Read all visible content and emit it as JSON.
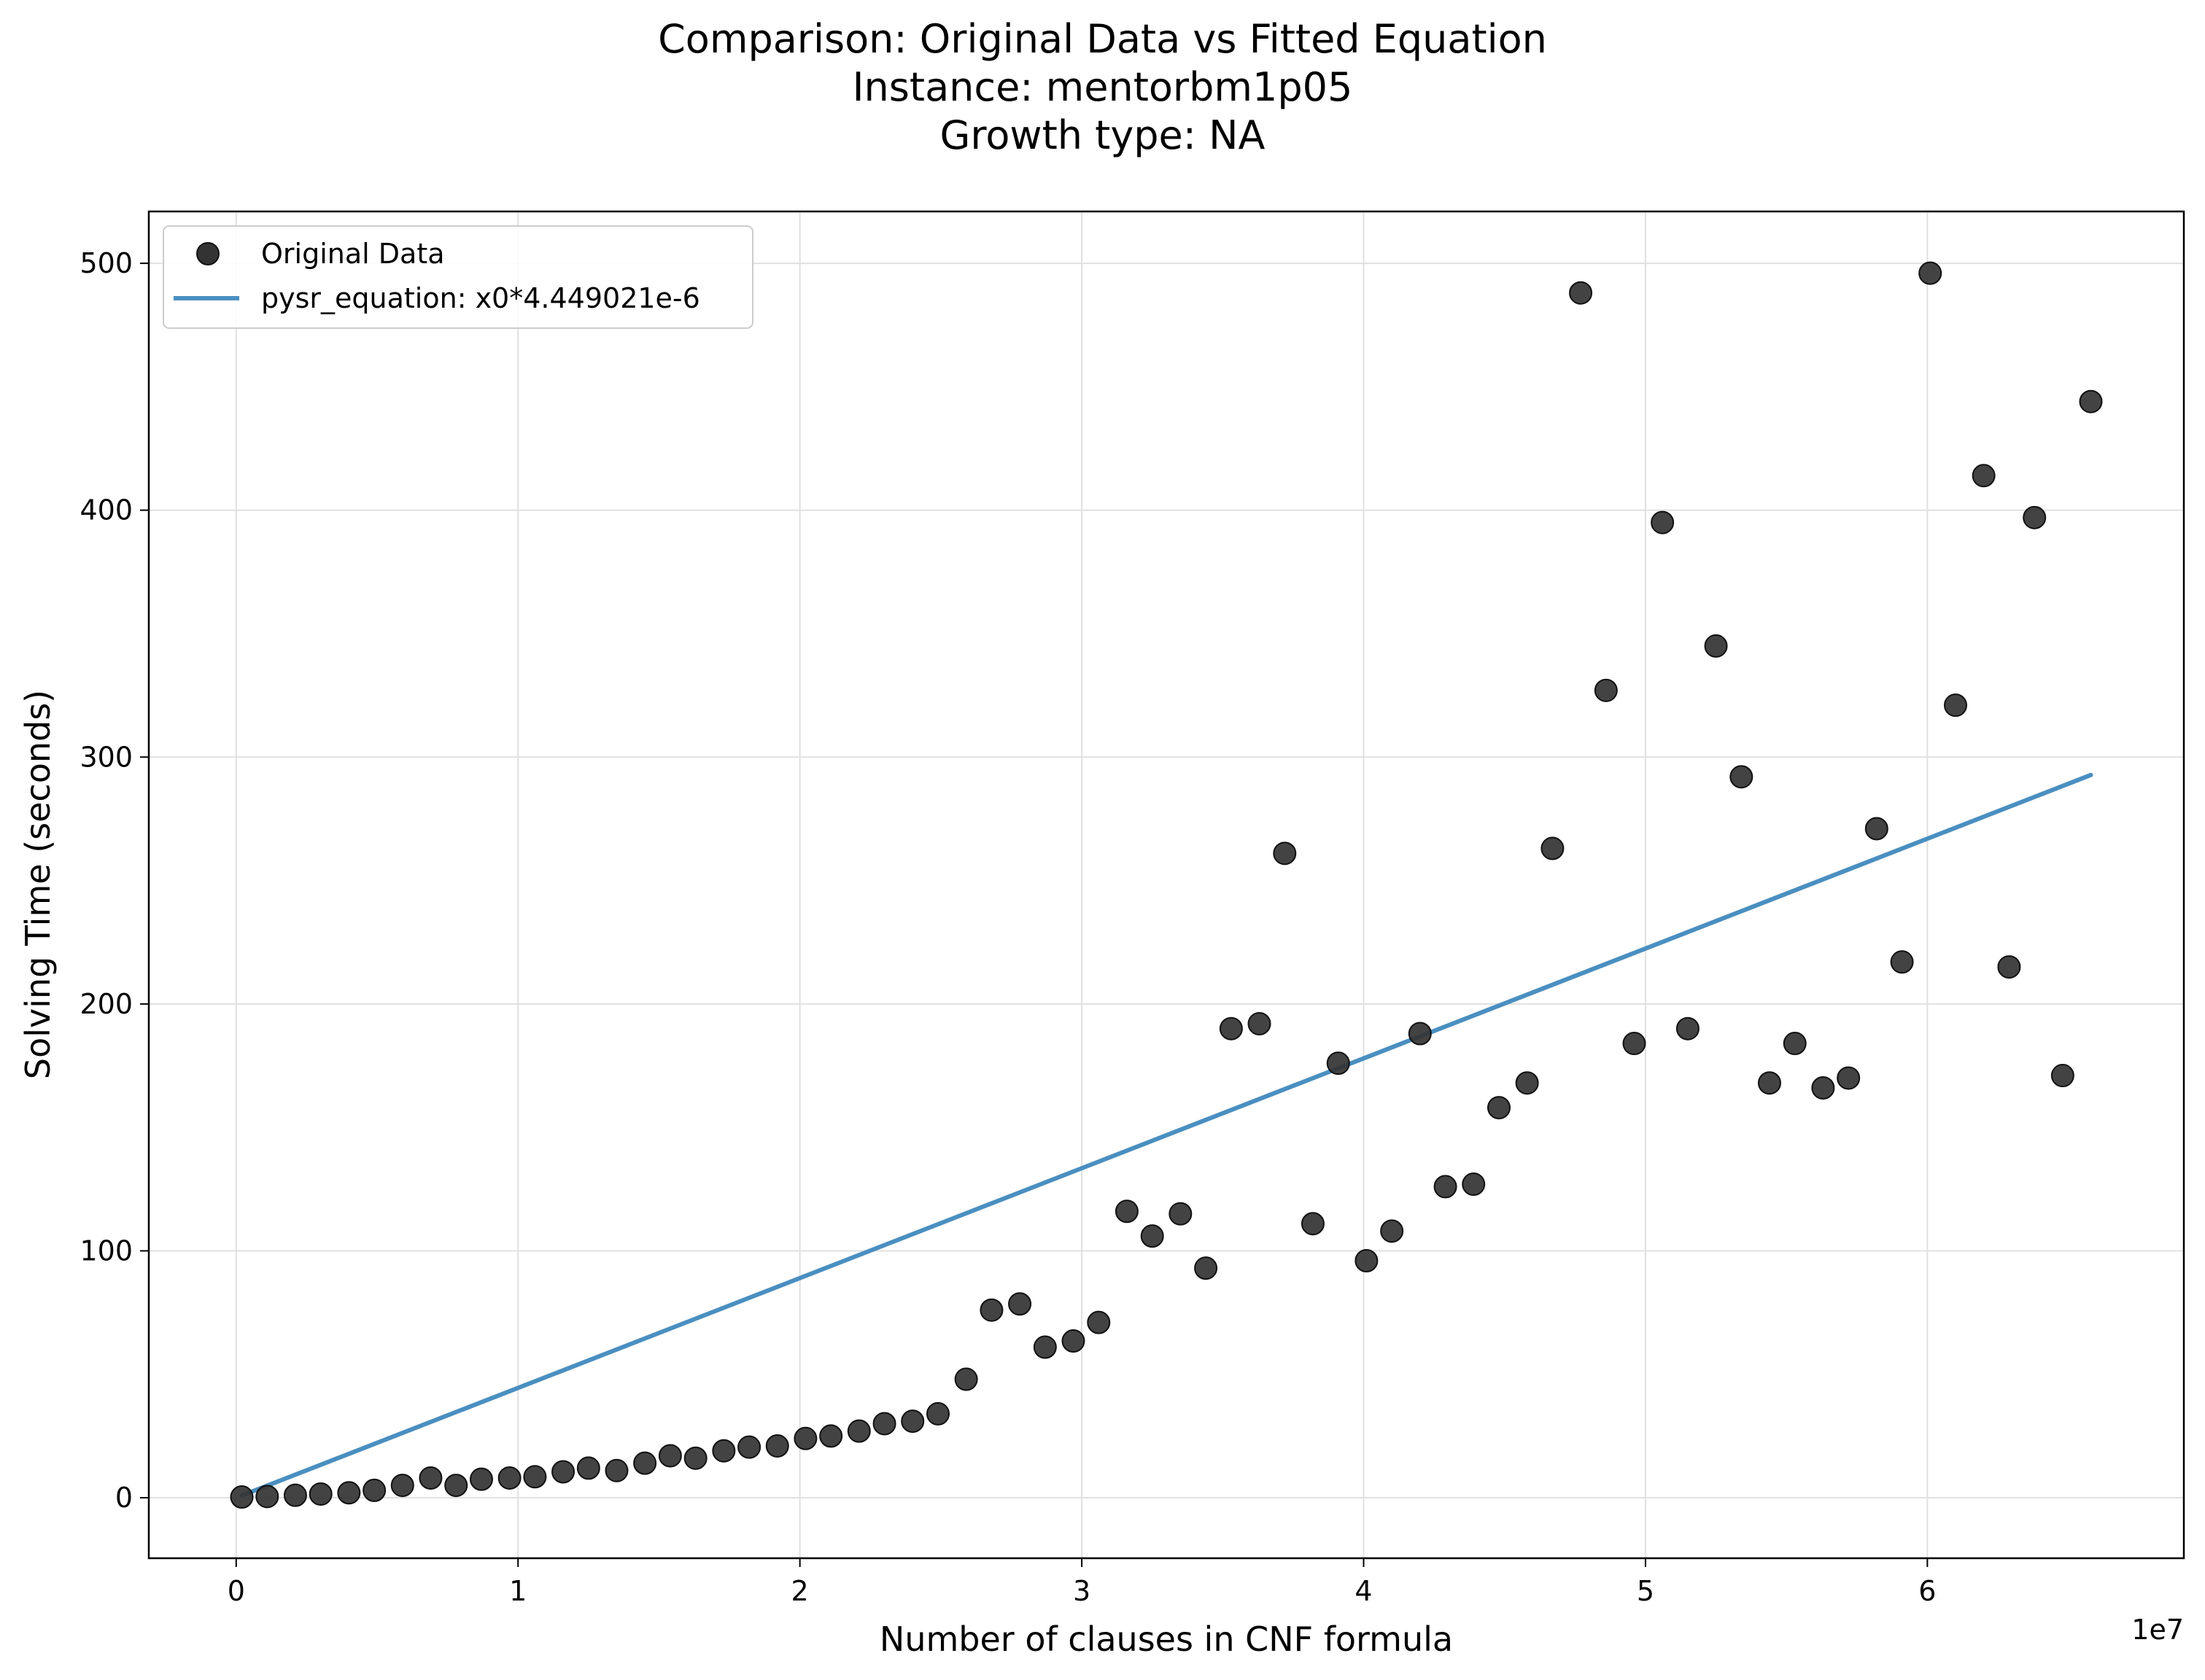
{
  "chart_data": {
    "type": "scatter",
    "title_lines": [
      "Comparison: Original Data vs Fitted Equation",
      "Instance: mentorbm1p05",
      "Growth type: NA"
    ],
    "xlabel": "Number of clauses in CNF formula",
    "ylabel": "Solving Time (seconds)",
    "x_offset_label": "1e7",
    "x_scale": 10000000,
    "xlim": [
      -3100000,
      69100000
    ],
    "ylim": [
      -24.5,
      521
    ],
    "x_ticks": [
      0,
      1,
      2,
      3,
      4,
      5,
      6
    ],
    "y_ticks": [
      0,
      100,
      200,
      300,
      400,
      500
    ],
    "grid": true,
    "legend_position": "top-left",
    "colors": {
      "points": "#333333",
      "line": "#4a8fc0"
    },
    "series": [
      {
        "name": "Original Data",
        "kind": "scatter",
        "x": [
          200000,
          1100000,
          2100000,
          3000000,
          4000000,
          4900000,
          5900000,
          6900000,
          7800000,
          8700000,
          9700000,
          10600000,
          11600000,
          12500000,
          13500000,
          14500000,
          15400000,
          16300000,
          17300000,
          18200000,
          19200000,
          20200000,
          21100000,
          22100000,
          23000000,
          24000000,
          24900000,
          25900000,
          26800000,
          27800000,
          28700000,
          29700000,
          30600000,
          31600000,
          32500000,
          33500000,
          34400000,
          35300000,
          36300000,
          37200000,
          38200000,
          39100000,
          40100000,
          41000000,
          42000000,
          42900000,
          43900000,
          44800000,
          45800000,
          46700000,
          47700000,
          48600000,
          49600000,
          50600000,
          51500000,
          52500000,
          53400000,
          54400000,
          55300000,
          56300000,
          57200000,
          58200000,
          59100000,
          60100000,
          61000000,
          62000000,
          62900000,
          63800000,
          64800000,
          65800000
        ],
        "y": [
          0.3,
          0.5,
          1,
          1.5,
          2,
          3,
          5,
          8,
          5,
          7.5,
          8,
          8.5,
          10.5,
          12,
          11,
          14,
          17,
          16,
          19,
          20.5,
          21,
          24,
          25,
          27,
          30,
          31,
          34,
          48,
          76,
          78.5,
          61,
          63.5,
          71,
          116,
          106,
          115,
          93,
          190,
          192,
          261,
          111,
          176,
          96,
          108,
          188,
          126,
          127,
          158,
          168,
          263,
          488,
          327,
          184,
          395,
          190,
          345,
          292,
          168,
          184,
          166,
          170,
          271,
          217,
          496,
          321,
          414,
          215,
          397,
          171,
          444
        ]
      },
      {
        "name": "pysr_equation: x0*4.449021e-6",
        "kind": "line",
        "coefficient": 4.449021e-06,
        "x": [
          200000,
          65800000
        ]
      }
    ]
  }
}
